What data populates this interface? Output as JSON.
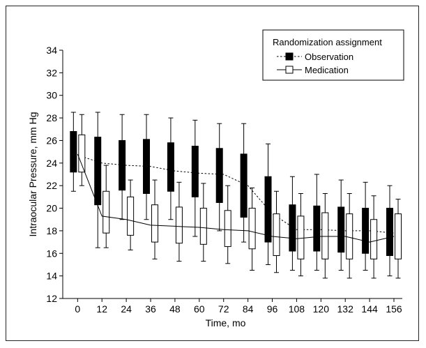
{
  "chart_data": {
    "type": "box",
    "xlabel": "Time, mo",
    "ylabel": "Intraocular Pressure, mm Hg",
    "xticks": [
      0,
      12,
      24,
      36,
      48,
      60,
      72,
      84,
      96,
      108,
      120,
      132,
      144,
      156
    ],
    "yticks": [
      12,
      14,
      16,
      18,
      20,
      22,
      24,
      26,
      28,
      30,
      32,
      34
    ],
    "ylim": [
      12,
      34
    ],
    "legend": {
      "title": "Randomization assignment",
      "position": "top-right"
    },
    "series": [
      {
        "name": "Observation",
        "fill": "#000000",
        "line_style": "dotted",
        "mean": [
          24.7,
          24.0,
          23.8,
          23.7,
          23.3,
          23.1,
          23.0,
          22.0,
          19.5,
          18.1,
          18.1,
          18.0,
          18.0,
          17.8
        ],
        "q1": [
          23.2,
          20.3,
          21.6,
          21.3,
          21.5,
          21.0,
          20.5,
          19.2,
          17.0,
          16.2,
          16.2,
          16.1,
          16.0,
          15.8
        ],
        "q3": [
          26.8,
          26.3,
          26.0,
          26.1,
          25.8,
          25.5,
          25.3,
          24.8,
          22.8,
          20.3,
          20.2,
          20.1,
          20.0,
          20.0
        ],
        "whisker_low": [
          21.5,
          16.5,
          19.0,
          19.0,
          19.0,
          17.5,
          18.0,
          17.0,
          15.0,
          14.5,
          14.5,
          14.5,
          14.5,
          14.0
        ],
        "whisker_high": [
          28.5,
          28.5,
          28.3,
          28.3,
          28.0,
          27.8,
          27.5,
          27.5,
          25.7,
          22.8,
          23.0,
          22.5,
          22.3,
          22.0
        ]
      },
      {
        "name": "Medication",
        "fill": "#ffffff",
        "line_style": "solid",
        "mean": [
          24.8,
          19.3,
          19.0,
          18.5,
          18.4,
          18.3,
          18.1,
          18.0,
          17.5,
          17.3,
          17.5,
          17.5,
          17.0,
          17.5
        ],
        "q1": [
          23.2,
          17.8,
          17.6,
          17.0,
          16.9,
          16.8,
          16.6,
          16.4,
          15.8,
          15.5,
          15.5,
          15.5,
          15.5,
          15.5
        ],
        "q3": [
          26.5,
          21.5,
          21.0,
          20.3,
          20.1,
          20.0,
          19.8,
          20.0,
          19.5,
          19.3,
          19.6,
          19.5,
          19.0,
          19.5
        ],
        "whisker_low": [
          22.0,
          16.5,
          16.3,
          15.5,
          15.3,
          15.3,
          15.1,
          14.5,
          14.3,
          14.0,
          13.8,
          13.8,
          13.8,
          13.8
        ],
        "whisker_high": [
          28.3,
          23.8,
          22.5,
          22.5,
          22.3,
          22.2,
          22.0,
          21.8,
          21.5,
          21.3,
          21.3,
          21.3,
          21.1,
          20.8
        ]
      }
    ]
  }
}
